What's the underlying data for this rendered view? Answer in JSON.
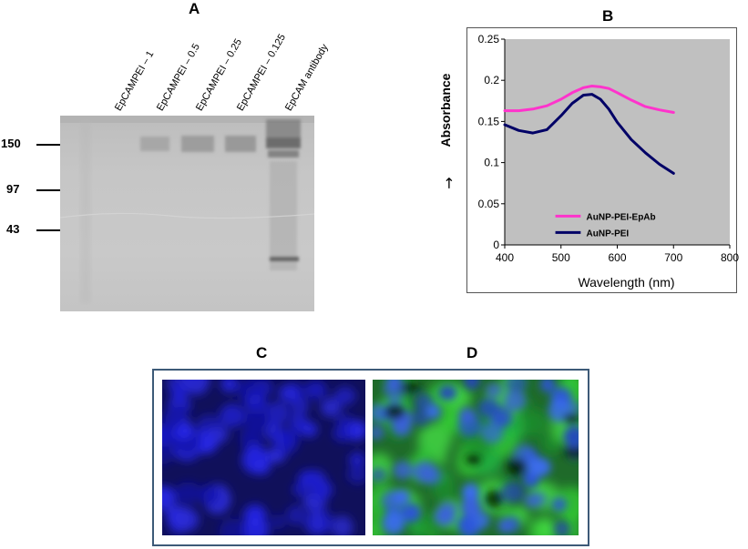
{
  "panels": {
    "a": {
      "letter": "A"
    },
    "b": {
      "letter": "B"
    },
    "c": {
      "letter": "C"
    },
    "d": {
      "letter": "D"
    }
  },
  "gel": {
    "lanes": [
      "EpCAMPEI – 1",
      "EpCAMPEI – 0.5",
      "EpCAMPEI – 0.25",
      "EpCAMPEI – 0.125",
      "EpCAM antibody"
    ],
    "markers": [
      "150",
      "97",
      "43"
    ]
  },
  "chart_data": {
    "type": "line",
    "xlabel": "Wavelength (nm)",
    "ylabel": "Absorbance",
    "ylabel_arrow": "→",
    "xlim": [
      400,
      800
    ],
    "ylim": [
      0,
      0.25
    ],
    "xticks": [
      "400",
      "500",
      "600",
      "700",
      "800"
    ],
    "yticks": [
      "0",
      "0.05",
      "0.1",
      "0.15",
      "0.2",
      "0.25"
    ],
    "grid": false,
    "plot_background": "#c0c0c0",
    "legend_position": "bottom-left",
    "series": [
      {
        "name": "AuNP-PEI-EpAb",
        "color": "#ff33cc",
        "x": [
          400,
          425,
          450,
          475,
          500,
          520,
          540,
          555,
          570,
          585,
          600,
          625,
          650,
          675,
          700
        ],
        "y": [
          0.163,
          0.163,
          0.165,
          0.169,
          0.177,
          0.185,
          0.191,
          0.193,
          0.192,
          0.19,
          0.185,
          0.176,
          0.168,
          0.164,
          0.161
        ]
      },
      {
        "name": "AuNP-PEI",
        "color": "#000066",
        "x": [
          400,
          425,
          450,
          475,
          500,
          520,
          540,
          555,
          570,
          585,
          600,
          625,
          650,
          675,
          700
        ],
        "y": [
          0.146,
          0.139,
          0.136,
          0.14,
          0.157,
          0.172,
          0.182,
          0.183,
          0.177,
          0.165,
          0.149,
          0.128,
          0.112,
          0.098,
          0.087
        ]
      }
    ]
  }
}
